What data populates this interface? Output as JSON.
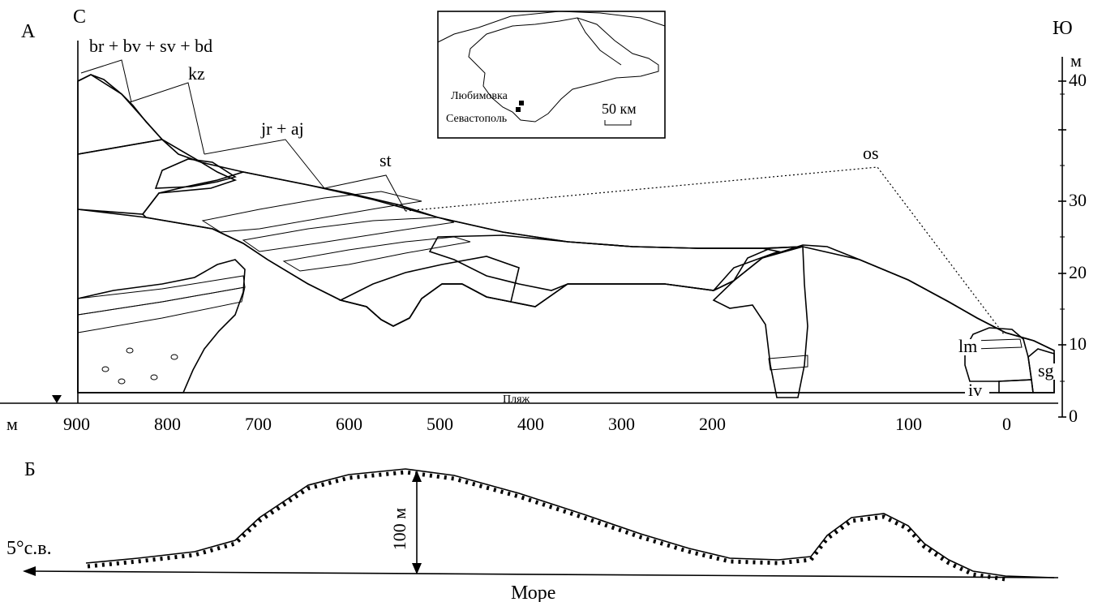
{
  "panel_a": {
    "label": "А",
    "north_label": "С",
    "south_label": "Ю",
    "beach_label": "Пляж",
    "x_unit": "м",
    "y_unit": "м",
    "x_ticks": [
      "900",
      "800",
      "700",
      "600",
      "500",
      "400",
      "300",
      "200",
      "100",
      "0"
    ],
    "y_ticks": [
      "40",
      "30",
      "20",
      "10",
      "0"
    ],
    "units": [
      {
        "code": "br + bv + sv + bd"
      },
      {
        "code": "kz"
      },
      {
        "code": "jr + aj"
      },
      {
        "code": "st"
      },
      {
        "code": "os"
      },
      {
        "code": "lm"
      },
      {
        "code": "sg"
      },
      {
        "code": "iv"
      }
    ]
  },
  "inset_map": {
    "place_1": "Любимовка",
    "place_2": "Севастополь",
    "scale": "50 км"
  },
  "panel_b": {
    "label": "Б",
    "direction": "5°с.в.",
    "height": "100 м",
    "sea_label": "Море"
  }
}
